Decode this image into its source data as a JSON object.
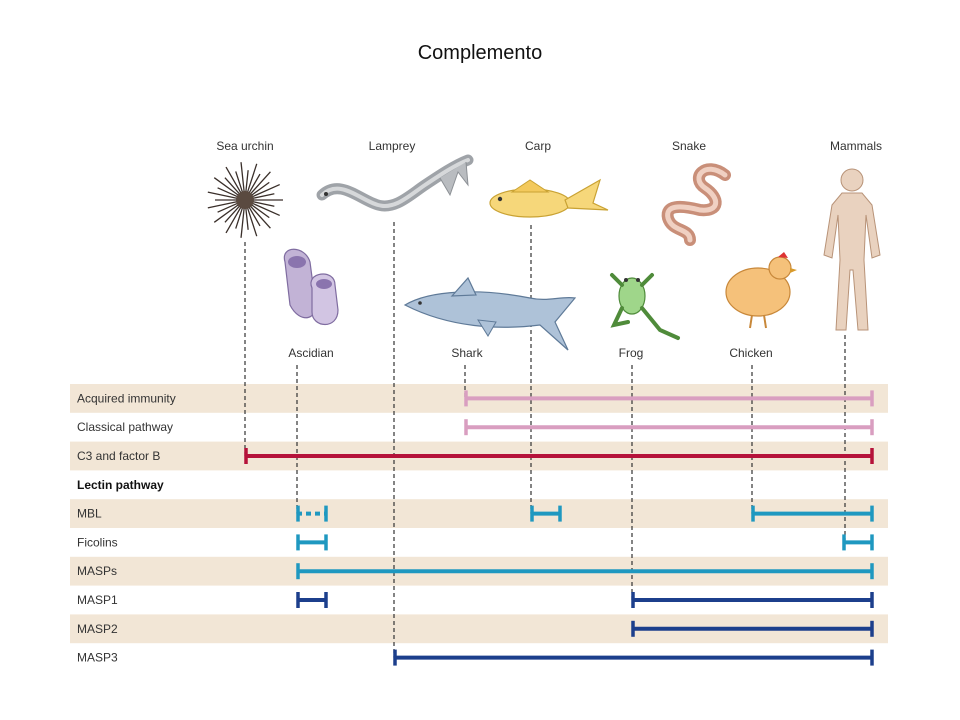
{
  "title": "Complemento",
  "colors": {
    "band": "#f2e6d6",
    "pink": "#d99ec0",
    "red": "#b5123a",
    "teal": "#1f98c0",
    "navy": "#1c3f8c",
    "dash": "#333333"
  },
  "animals_top": [
    "Sea urchin",
    "Lamprey",
    "Carp",
    "Snake",
    "Mammals"
  ],
  "animals_bottom": [
    "Ascidian",
    "Shark",
    "Frog",
    "Chicken"
  ],
  "rows": [
    {
      "label": "Acquired immunity",
      "bold": false,
      "shaded": true
    },
    {
      "label": "Classical pathway",
      "bold": false,
      "shaded": false
    },
    {
      "label": "C3 and factor B",
      "bold": false,
      "shaded": true
    },
    {
      "label": "Lectin pathway",
      "bold": true,
      "shaded": false
    },
    {
      "label": "MBL",
      "bold": false,
      "shaded": true
    },
    {
      "label": "Ficolins",
      "bold": false,
      "shaded": false
    },
    {
      "label": "MASPs",
      "bold": false,
      "shaded": true
    },
    {
      "label": "MASP1",
      "bold": false,
      "shaded": false
    },
    {
      "label": "MASP2",
      "bold": false,
      "shaded": true
    },
    {
      "label": "MASP3",
      "bold": false,
      "shaded": false
    }
  ],
  "lineages": [
    "Sea urchin",
    "Ascidian",
    "Lamprey",
    "Shark",
    "Carp",
    "Frog",
    "Chicken",
    "Mammals"
  ],
  "spans": [
    {
      "row": 0,
      "from": "Shark",
      "to": "Mammals",
      "color": "pink"
    },
    {
      "row": 1,
      "from": "Shark",
      "to": "Mammals",
      "color": "pink"
    },
    {
      "row": 2,
      "from": "Sea urchin",
      "to": "Mammals",
      "color": "red"
    },
    {
      "row": 4,
      "from": "Ascidian",
      "to": "Ascidian",
      "color": "teal",
      "dotted": true
    },
    {
      "row": 4,
      "from": "Carp",
      "to": "Carp",
      "color": "teal"
    },
    {
      "row": 4,
      "from": "Chicken",
      "to": "Mammals",
      "color": "teal"
    },
    {
      "row": 5,
      "from": "Ascidian",
      "to": "Ascidian",
      "color": "teal"
    },
    {
      "row": 5,
      "from": "Mammals",
      "to": "Mammals",
      "color": "teal",
      "left_stub": true
    },
    {
      "row": 6,
      "from": "Ascidian",
      "to": "Mammals",
      "color": "teal"
    },
    {
      "row": 7,
      "from": "Ascidian",
      "to": "Ascidian",
      "color": "navy"
    },
    {
      "row": 7,
      "from": "Frog",
      "to": "Mammals",
      "color": "navy"
    },
    {
      "row": 8,
      "from": "Frog",
      "to": "Mammals",
      "color": "navy"
    },
    {
      "row": 9,
      "from": "Lamprey",
      "to": "Mammals",
      "color": "navy"
    }
  ]
}
